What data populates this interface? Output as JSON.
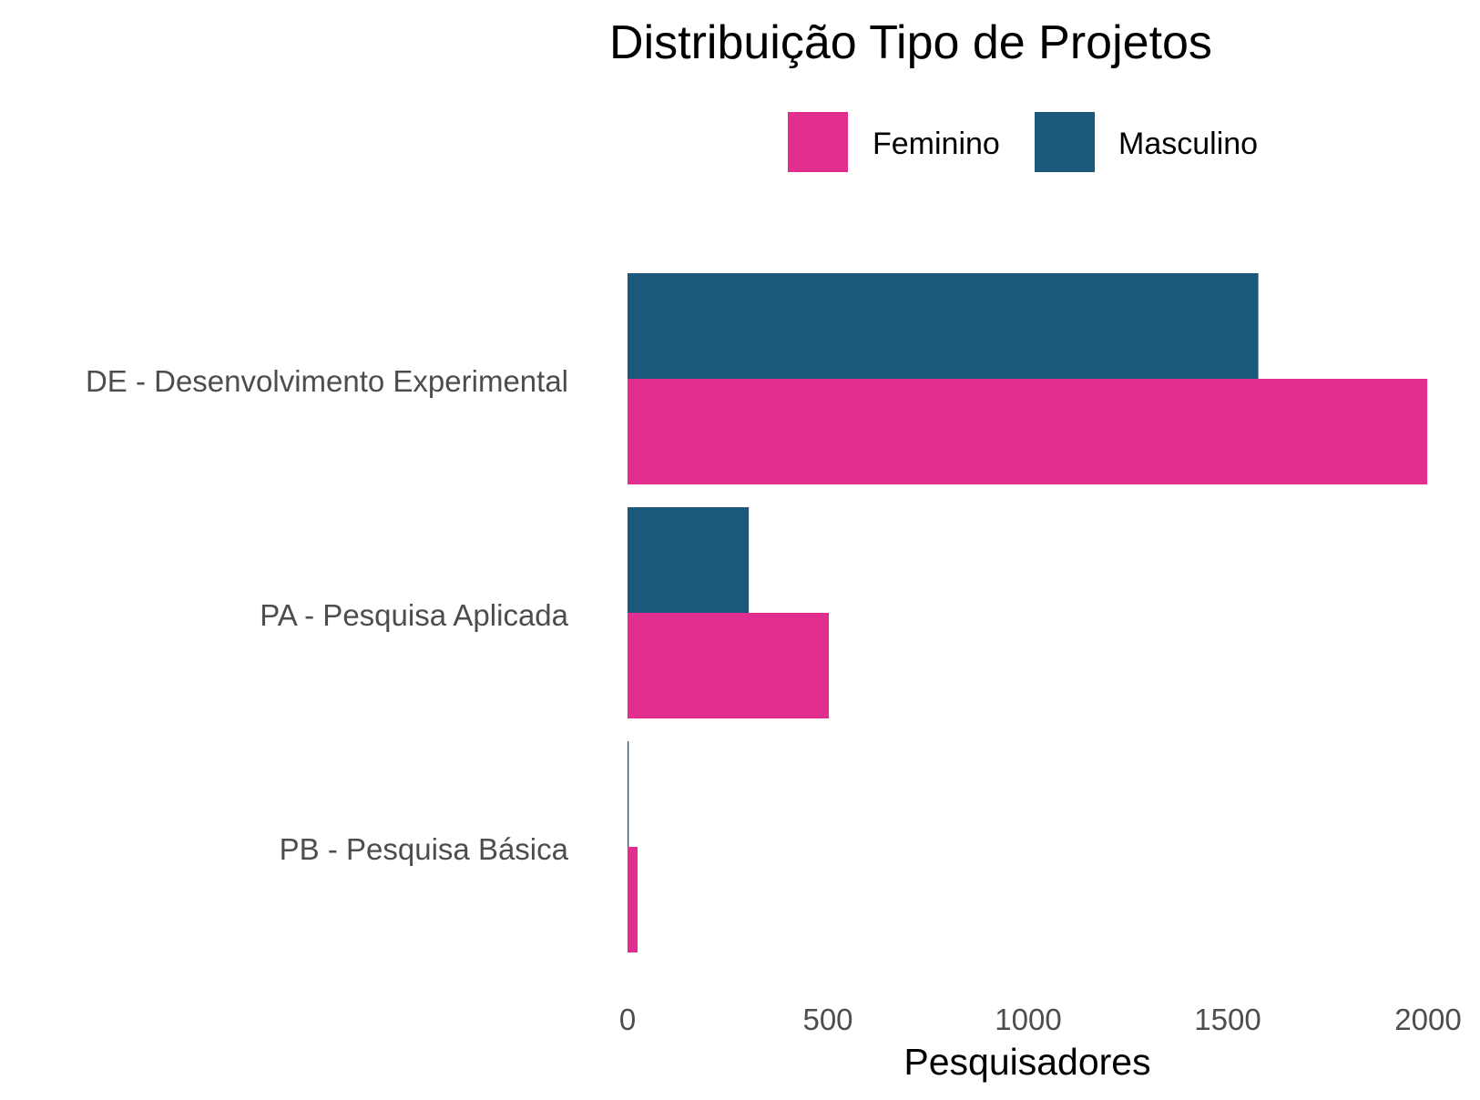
{
  "chart_data": {
    "type": "bar",
    "orientation": "horizontal",
    "title": "Distribuição Tipo de Projetos",
    "xlabel": "Pesquisadores",
    "ylabel": "",
    "categories": [
      "DE -  Desenvolvimento Experimental",
      "PA -  Pesquisa Aplicada",
      "PB -  Pesquisa Básica"
    ],
    "series": [
      {
        "name": "Masculino",
        "color": "#1b587c",
        "values": [
          1576,
          303,
          3
        ]
      },
      {
        "name": "Feminino",
        "color": "#e22e8f",
        "values": [
          1998,
          503,
          25
        ]
      }
    ],
    "legend_order": [
      "Feminino",
      "Masculino"
    ],
    "legend_position": "top",
    "xlim": [
      0,
      2000
    ],
    "xticks": [
      "0",
      "500",
      "1000",
      "1500",
      "2000"
    ],
    "grid": false
  }
}
